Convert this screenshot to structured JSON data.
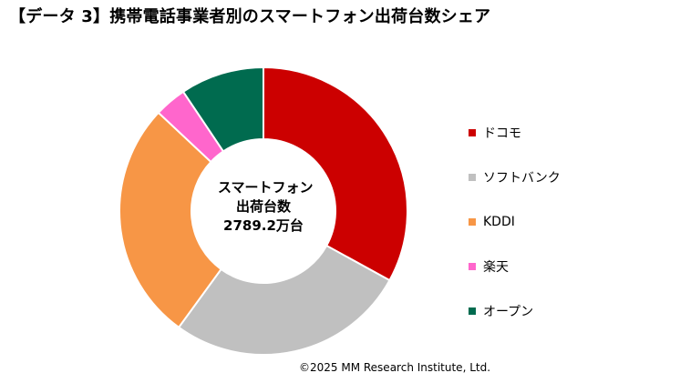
{
  "title": "【データ 3】携帯電話事業者別のスマートフォン出荷台数シェア",
  "center_label": [
    "スマートフォン",
    "出荷台数",
    "2789.2万台"
  ],
  "copyright": "©2025 MM Research Institute, Ltd.",
  "chart_data": {
    "type": "pie",
    "donut": true,
    "title": "【データ 3】携帯電話事業者別のスマートフォン出荷台数シェア",
    "legend_position": "right",
    "categories": [
      "ドコモ",
      "ソフトバンク",
      "KDDI",
      "楽天",
      "オープン"
    ],
    "values": [
      33.0,
      27.0,
      27.0,
      3.6,
      9.4
    ],
    "colors": [
      "#cc0000",
      "#c0c0c0",
      "#f79646",
      "#ff66cc",
      "#006b4f"
    ]
  }
}
